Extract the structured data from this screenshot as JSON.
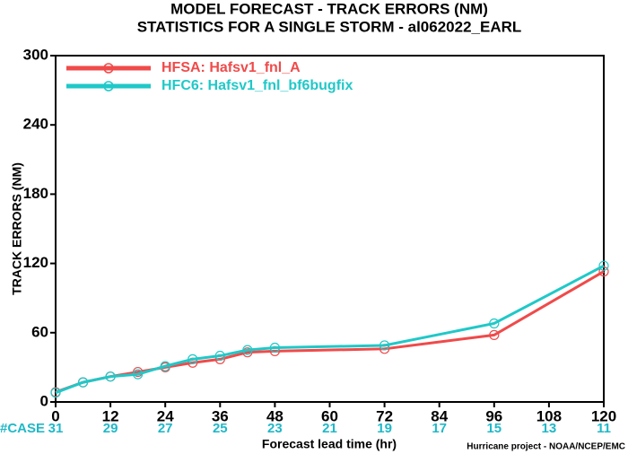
{
  "chart_data": {
    "type": "line",
    "title": "MODEL FORECAST - TRACK ERRORS (NM)",
    "subtitle": "STATISTICS FOR A SINGLE STORM - al062022_EARL",
    "x_label": "Forecast lead time (hr)",
    "y_label": "TRACK ERRORS (NM)",
    "credit": "Hurricane project - NOAA/NCEP/EMC",
    "case_label": "#CASE",
    "case_x": [
      0,
      12,
      24,
      36,
      48,
      60,
      72,
      84,
      96,
      108,
      120
    ],
    "case_counts": [
      31,
      29,
      27,
      25,
      23,
      21,
      19,
      17,
      15,
      13,
      11
    ],
    "x": [
      0,
      6,
      12,
      18,
      24,
      30,
      36,
      42,
      48,
      72,
      96,
      120
    ],
    "series": [
      {
        "name": "HFSA: Hafsv1_fnl_A",
        "color": "#f04a4a",
        "values": [
          8.5,
          17,
          22,
          26,
          30,
          34,
          37,
          43,
          44,
          46,
          58,
          113
        ]
      },
      {
        "name": "HFC6: Hafsv1_fnl_bf6bugfix",
        "color": "#20c8c8",
        "values": [
          8,
          17,
          22,
          24,
          31,
          37,
          40,
          45,
          47,
          49,
          68,
          118
        ]
      }
    ],
    "xlim": [
      0,
      120
    ],
    "xticks": [
      0,
      12,
      24,
      36,
      48,
      60,
      72,
      84,
      96,
      108,
      120
    ],
    "ylim": [
      0,
      300
    ],
    "yticks": [
      0,
      60,
      120,
      180,
      240,
      300
    ]
  }
}
